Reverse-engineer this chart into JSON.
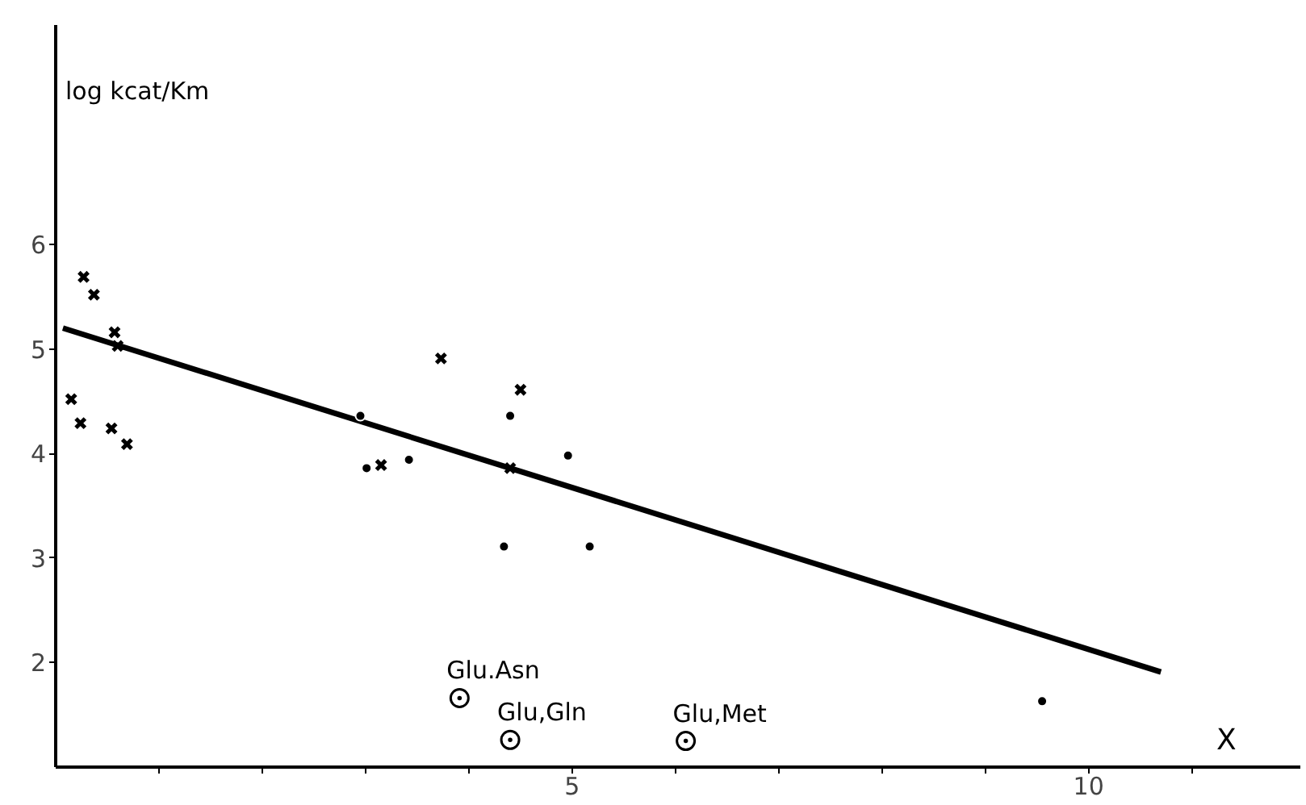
{
  "chart_data": {
    "type": "scatter",
    "xlabel": "X",
    "ylabel": "log kcat/Km",
    "xlim": [
      0,
      12.05
    ],
    "ylim": [
      1,
      8.1
    ],
    "xticks": [
      {
        "value": 1,
        "label": null
      },
      {
        "value": 2,
        "label": null
      },
      {
        "value": 3,
        "label": null
      },
      {
        "value": 4,
        "label": null
      },
      5,
      {
        "value": 6,
        "label": null
      },
      {
        "value": 7,
        "label": null
      },
      {
        "value": 8,
        "label": null
      },
      {
        "value": 9,
        "label": null
      },
      10,
      {
        "value": 11,
        "label": null
      }
    ],
    "yticks": [
      2,
      3,
      4,
      5,
      6
    ],
    "grid": false,
    "series": [
      {
        "marker": "cross",
        "color": "#000000",
        "x": [
          0.27,
          0.37,
          0.57,
          0.6,
          0.15,
          0.24,
          0.54,
          0.69,
          3.15,
          3.73,
          4.5,
          4.4
        ],
        "values": [
          5.69,
          5.52,
          5.16,
          5.03,
          4.52,
          4.29,
          4.24,
          4.09,
          3.89,
          4.91,
          4.61,
          3.86
        ]
      },
      {
        "marker": "circle",
        "color": "#000000",
        "x": [
          2.95,
          3.01,
          3.42,
          4.4,
          4.96,
          4.34,
          5.17,
          9.55
        ],
        "values": [
          4.36,
          3.86,
          3.94,
          4.36,
          3.98,
          3.11,
          3.11,
          1.63
        ]
      },
      {
        "type": "line",
        "color": "#000000",
        "x": [
          0.07,
          10.7
        ],
        "values": [
          5.2,
          1.91
        ]
      }
    ],
    "annotations": [
      {
        "text": "Glu.Asn",
        "x": 3.91,
        "y": 1.66
      },
      {
        "text": "Glu,Gln",
        "x": 4.4,
        "y": 1.26
      },
      {
        "text": "Glu,Met",
        "x": 6.1,
        "y": 1.25
      }
    ]
  }
}
